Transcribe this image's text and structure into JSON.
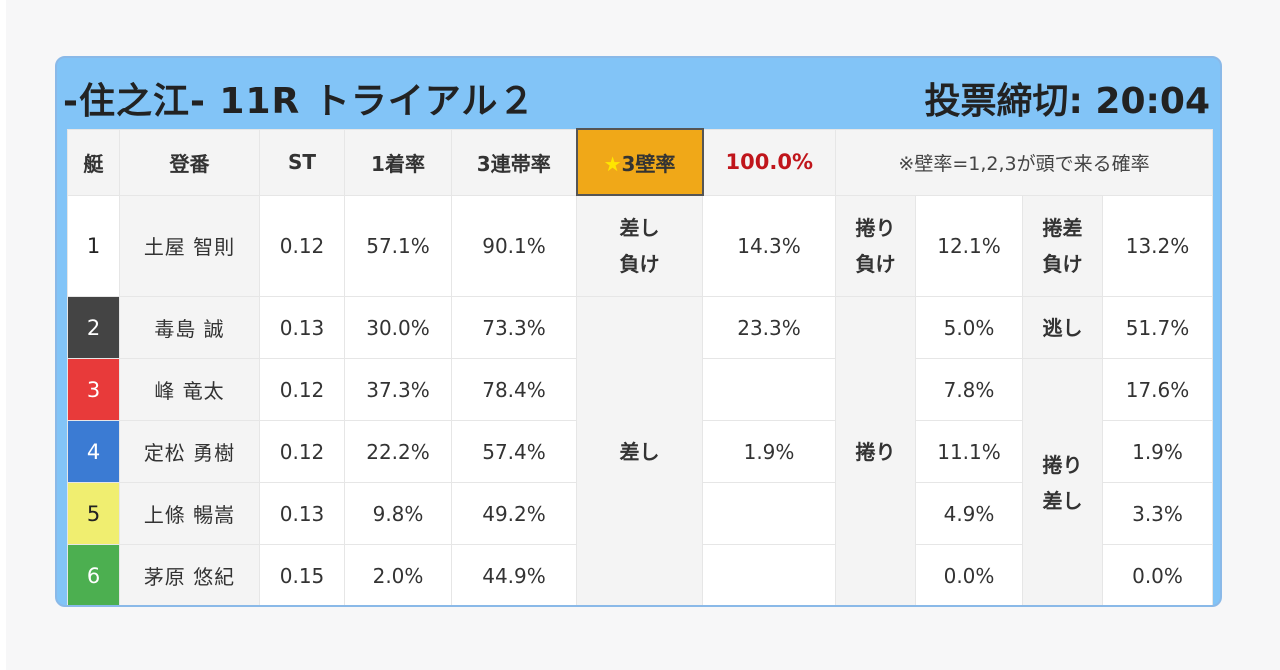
{
  "header": {
    "title": "-住之江- 11R トライアル２",
    "deadline": "投票締切: 20:04"
  },
  "table": {
    "headers": {
      "boat": "艇",
      "entry": "登番",
      "st": "ST",
      "first_rate": "1着率",
      "top3_rate": "3連帯率",
      "kabe_label": "3壁率",
      "kabe_value": "100.0%",
      "note": "※壁率=1,2,3が頭で来る確率"
    },
    "rows": [
      {
        "boat": "1",
        "name": "土屋 智則",
        "st": "0.12",
        "first": "57.1%",
        "top3": "90.1%"
      },
      {
        "boat": "2",
        "name": "毒島 誠",
        "st": "0.13",
        "first": "30.0%",
        "top3": "73.3%"
      },
      {
        "boat": "3",
        "name": "峰 竜太",
        "st": "0.12",
        "first": "37.3%",
        "top3": "78.4%"
      },
      {
        "boat": "4",
        "name": "定松 勇樹",
        "st": "0.12",
        "first": "22.2%",
        "top3": "57.4%"
      },
      {
        "boat": "5",
        "name": "上條 暢嵩",
        "st": "0.13",
        "first": "9.8%",
        "top3": "49.2%"
      },
      {
        "boat": "6",
        "name": "茅原 悠紀",
        "st": "0.15",
        "first": "2.0%",
        "top3": "44.9%"
      }
    ],
    "kimarite": {
      "sashi_make": {
        "line1": "差し",
        "line2": "負け",
        "value": "14.3%"
      },
      "makuri_make": {
        "line1": "捲り",
        "line2": "負け",
        "value": "12.1%"
      },
      "makurizashi_make": {
        "line1": "捲差",
        "line2": "負け",
        "value": "13.2%"
      },
      "sashi": {
        "label": "差し",
        "values": [
          "23.3%",
          "",
          "1.9%",
          "",
          ""
        ]
      },
      "makuri": {
        "label": "捲り",
        "values": [
          "5.0%",
          "7.8%",
          "11.1%",
          "4.9%",
          "0.0%"
        ]
      },
      "nige": {
        "label": "逃し",
        "value": "51.7%"
      },
      "makurizashi": {
        "line1": "捲り",
        "line2": "差し",
        "values": [
          "17.6%",
          "1.9%",
          "3.3%",
          "0.0%"
        ]
      }
    }
  }
}
